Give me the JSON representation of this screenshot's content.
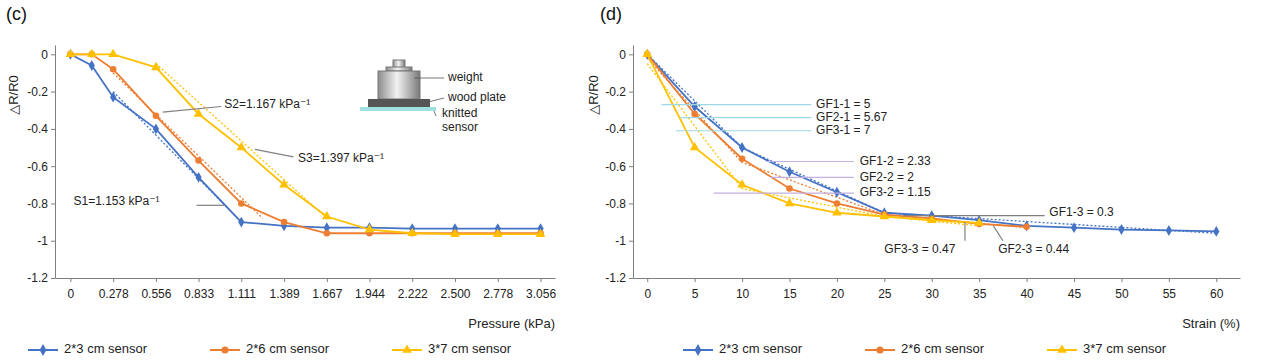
{
  "chart_data": [
    {
      "type": "line",
      "panel_label": "(c)",
      "x_label": "Pressure (kPa)",
      "y_label": "△R/R0",
      "xlim": [
        -0.1,
        3.15
      ],
      "ylim": [
        -1.2,
        0.05
      ],
      "xticks": [
        0,
        0.278,
        0.556,
        0.833,
        1.111,
        1.389,
        1.667,
        1.944,
        2.222,
        {
          "value": 2.5,
          "label": "2.500"
        },
        2.778,
        3.056
      ],
      "yticks": [
        -1.2,
        -1,
        -0.8,
        -0.6,
        -0.4,
        -0.2,
        0
      ],
      "legend": "bottom",
      "series": [
        {
          "name": "2*3 cm sensor",
          "color": "#4472c4",
          "marker": "diamond",
          "line_style": "solid",
          "x": [
            0,
            0.139,
            0.278,
            0.556,
            0.833,
            1.111,
            1.389,
            1.667,
            1.944,
            2.222,
            2.5,
            2.778,
            3.056
          ],
          "values": [
            0,
            -0.06,
            -0.23,
            -0.4,
            -0.66,
            -0.9,
            -0.92,
            -0.93,
            -0.93,
            -0.935,
            -0.935,
            -0.935,
            -0.935
          ]
        },
        {
          "name": "2*6 cm sensor",
          "color": "#ed7d31",
          "marker": "circle",
          "line_style": "solid",
          "x": [
            0,
            0.139,
            0.278,
            0.556,
            0.833,
            1.111,
            1.389,
            1.667,
            1.944,
            2.222,
            2.5,
            2.778,
            3.056
          ],
          "values": [
            0,
            0,
            -0.08,
            -0.33,
            -0.57,
            -0.8,
            -0.9,
            -0.96,
            -0.96,
            -0.96,
            -0.96,
            -0.96,
            -0.96
          ]
        },
        {
          "name": "3*7 cm sensor",
          "color": "#ffc000",
          "marker": "triangle",
          "line_style": "solid",
          "x": [
            0,
            0.139,
            0.278,
            0.556,
            0.833,
            1.111,
            1.389,
            1.667,
            1.944,
            2.222,
            2.5,
            2.778,
            3.056
          ],
          "values": [
            0,
            0,
            0,
            -0.07,
            -0.32,
            -0.5,
            -0.7,
            -0.87,
            -0.94,
            -0.96,
            -0.965,
            -0.965,
            -0.965
          ]
        }
      ],
      "trendlines": [
        {
          "color": "#4472c4",
          "line_style": "dotted",
          "x": [
            0.278,
            1.111
          ],
          "values": [
            -0.2,
            -0.9
          ]
        },
        {
          "color": "#ed7d31",
          "line_style": "dotted",
          "x": [
            0.278,
            1.25
          ],
          "values": [
            -0.1,
            -0.88
          ]
        },
        {
          "color": "#ffc000",
          "line_style": "dotted",
          "x": [
            0.556,
            1.667
          ],
          "values": [
            -0.05,
            -0.88
          ]
        }
      ],
      "annotations": [
        {
          "text": "S2=1.167 kPa⁻¹",
          "x": 1.0,
          "y": -0.27,
          "color": "#808080",
          "line": [
            [
              0.6,
              -0.31
            ],
            [
              0.98,
              -0.28
            ]
          ]
        },
        {
          "text": "S3=1.397 kPa⁻¹",
          "x": 1.48,
          "y": -0.56,
          "color": "#808080",
          "line": [
            [
              1.2,
              -0.51
            ],
            [
              1.45,
              -0.55
            ]
          ]
        },
        {
          "text": "S1=1.153 kPa⁻¹",
          "x": 0.02,
          "y": -0.79,
          "color": "#808080",
          "line": [
            [
              0.82,
              -0.81
            ],
            [
              1.0,
              -0.81
            ]
          ]
        }
      ],
      "inset_labels": [
        "weight",
        "wood plate",
        "knitted",
        "sensor"
      ]
    },
    {
      "type": "line",
      "panel_label": "(d)",
      "x_label": "Strain (%)",
      "y_label": "△R/R0",
      "xlim": [
        -1.5,
        62.5
      ],
      "ylim": [
        -1.2,
        0.05
      ],
      "xticks": [
        0,
        5,
        10,
        15,
        20,
        25,
        30,
        35,
        40,
        45,
        50,
        55,
        60
      ],
      "yticks": [
        -1.2,
        -1,
        -0.8,
        -0.6,
        -0.4,
        -0.2,
        0
      ],
      "legend": "bottom",
      "series": [
        {
          "name": "2*3 cm sensor",
          "color": "#4472c4",
          "marker": "diamond",
          "line_style": "solid",
          "x": [
            0,
            5,
            10,
            15,
            20,
            25,
            30,
            35,
            40,
            45,
            50,
            55,
            60
          ],
          "values": [
            0,
            -0.28,
            -0.5,
            -0.63,
            -0.74,
            -0.85,
            -0.865,
            -0.89,
            -0.92,
            -0.93,
            -0.94,
            -0.945,
            -0.95
          ]
        },
        {
          "name": "2*6 cm sensor",
          "color": "#ed7d31",
          "marker": "circle",
          "line_style": "solid",
          "x": [
            0,
            5,
            10,
            15,
            20,
            25,
            30,
            35,
            40
          ],
          "values": [
            0,
            -0.32,
            -0.56,
            -0.72,
            -0.8,
            -0.86,
            -0.88,
            -0.91,
            -0.925
          ]
        },
        {
          "name": "3*7 cm sensor",
          "color": "#ffc000",
          "marker": "triangle",
          "line_style": "solid",
          "x": [
            0,
            5,
            10,
            15,
            20,
            25,
            30,
            35
          ],
          "values": [
            0,
            -0.5,
            -0.7,
            -0.8,
            -0.85,
            -0.87,
            -0.89,
            -0.905
          ]
        }
      ],
      "trendlines": [
        {
          "color": "#4472c4",
          "line_style": "dotted",
          "x": [
            0,
            10,
            25,
            60
          ],
          "values": [
            0,
            -0.5,
            -0.85,
            -0.96
          ]
        },
        {
          "color": "#ed7d31",
          "line_style": "dotted",
          "x": [
            0,
            10,
            25,
            40
          ],
          "values": [
            -0.02,
            -0.58,
            -0.86,
            -0.93
          ]
        },
        {
          "color": "#ffc000",
          "line_style": "dotted",
          "x": [
            0,
            10,
            25,
            35
          ],
          "values": [
            -0.05,
            -0.72,
            -0.87,
            -0.92
          ]
        }
      ],
      "annotations": [
        {
          "text": "GF1-1 = 5",
          "x": 17.8,
          "y": -0.27,
          "color": "#9fd8e3",
          "line": [
            [
              1.5,
              -0.27
            ],
            [
              17.3,
              -0.27
            ]
          ]
        },
        {
          "text": "GF2-1 = 5.67",
          "x": 17.8,
          "y": -0.34,
          "color": "#9fd8e3",
          "line": [
            [
              3.5,
              -0.34
            ],
            [
              17.3,
              -0.34
            ]
          ]
        },
        {
          "text": "GF3-1 = 7",
          "x": 17.8,
          "y": -0.41,
          "color": "#9fd8e3",
          "line": [
            [
              3.0,
              -0.41
            ],
            [
              17.3,
              -0.41
            ]
          ]
        },
        {
          "text": "GF1-2 = 2.33",
          "x": 22.4,
          "y": -0.575,
          "color": "#c3b1e1",
          "line": [
            [
              12.5,
              -0.575
            ],
            [
              21.8,
              -0.575
            ]
          ]
        },
        {
          "text": "GF2-2 = 2",
          "x": 22.4,
          "y": -0.66,
          "color": "#c3b1e1",
          "line": [
            [
              13,
              -0.66
            ],
            [
              21.8,
              -0.66
            ]
          ]
        },
        {
          "text": "GF3-2 = 1.15",
          "x": 22.4,
          "y": -0.745,
          "color": "#c3b1e1",
          "line": [
            [
              7,
              -0.745
            ],
            [
              21.8,
              -0.745
            ]
          ]
        },
        {
          "text": "GF1-3 = 0.3",
          "x": 42.4,
          "y": -0.85,
          "color": "#808080",
          "line": [
            [
              27,
              -0.865
            ],
            [
              41.9,
              -0.865
            ]
          ]
        },
        {
          "text": "GF3-3 = 0.47",
          "x": 25,
          "y": -1.05,
          "color": "#808080",
          "line": [
            [
              33.5,
              -0.9
            ],
            [
              33.5,
              -1.0
            ]
          ]
        },
        {
          "text": "GF2-3 = 0.44",
          "x": 37,
          "y": -1.05,
          "color": "#808080",
          "line": [
            [
              36.5,
              -0.92
            ],
            [
              37.5,
              -1.0
            ]
          ]
        }
      ]
    }
  ]
}
